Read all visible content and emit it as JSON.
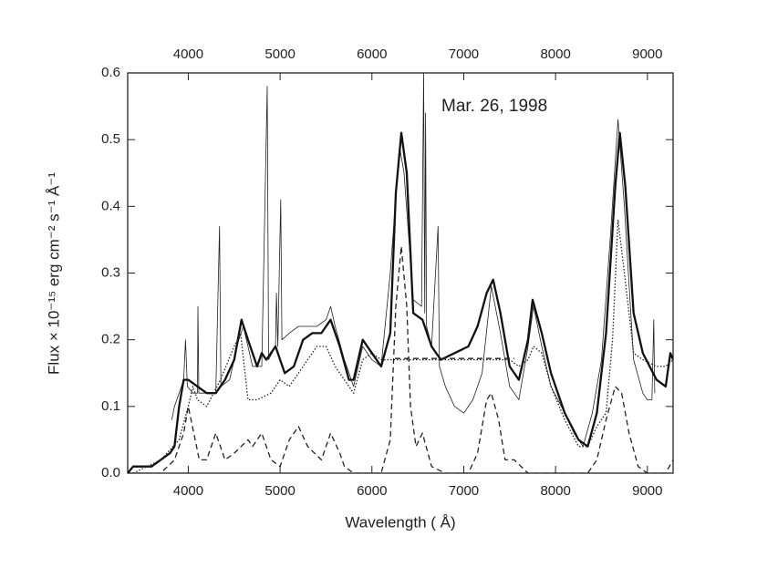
{
  "chart_data": {
    "type": "line",
    "annotation": "Mar. 26, 1998",
    "x_label": "Wavelength ( Å)",
    "y_label": "Flux × 10⁻¹⁵ erg cm⁻² s⁻¹ Å⁻¹",
    "xlim": [
      3340,
      9280
    ],
    "ylim": [
      0,
      0.6
    ],
    "xticks": [
      4000,
      5000,
      6000,
      7000,
      8000,
      9000
    ],
    "yticks": [
      {
        "value": 0,
        "label": "0.0"
      },
      0.1,
      0.2,
      0.3,
      0.4,
      0.5,
      0.6
    ],
    "series": [
      {
        "color": "#222222",
        "style": "thin",
        "x": [
          3820,
          3850,
          3900,
          3950,
          3970,
          3990,
          4050,
          4100,
          4105,
          4115,
          4200,
          4300,
          4340,
          4355,
          4450,
          4550,
          4600,
          4650,
          4700,
          4800,
          4860,
          4875,
          4950,
          4960,
          4975,
          5007,
          5020,
          5100,
          5200,
          5300,
          5400,
          5500,
          5550,
          5600,
          5700,
          5800,
          5900,
          6000,
          6100,
          6200,
          6300,
          6350,
          6450,
          6540,
          6563,
          6575,
          6584,
          6595,
          6650,
          6720,
          6735,
          6800,
          6900,
          7000,
          7100,
          7200,
          7300,
          7400,
          7500,
          7600,
          7700,
          7760,
          7850,
          7950,
          8100,
          8200,
          8300,
          8400,
          8500,
          8600,
          8680,
          8750,
          8850,
          8950,
          9000,
          9050,
          9069,
          9080
        ],
        "values": [
          0.08,
          0.1,
          0.12,
          0.14,
          0.2,
          0.13,
          0.12,
          0.12,
          0.25,
          0.12,
          0.12,
          0.12,
          0.37,
          0.13,
          0.14,
          0.2,
          0.22,
          0.19,
          0.16,
          0.16,
          0.58,
          0.17,
          0.19,
          0.27,
          0.19,
          0.41,
          0.2,
          0.21,
          0.22,
          0.22,
          0.22,
          0.23,
          0.25,
          0.22,
          0.17,
          0.13,
          0.19,
          0.17,
          0.16,
          0.3,
          0.49,
          0.45,
          0.26,
          0.25,
          0.6,
          0.24,
          0.54,
          0.22,
          0.19,
          0.37,
          0.16,
          0.13,
          0.1,
          0.09,
          0.11,
          0.15,
          0.28,
          0.21,
          0.13,
          0.11,
          0.19,
          0.25,
          0.19,
          0.13,
          0.09,
          0.06,
          0.04,
          0.09,
          0.17,
          0.36,
          0.53,
          0.4,
          0.17,
          0.12,
          0.11,
          0.11,
          0.23,
          0.12
        ]
      },
      {
        "color": "#111111",
        "style": "thick",
        "x": [
          3340,
          3400,
          3500,
          3600,
          3700,
          3800,
          3850,
          3900,
          3950,
          4000,
          4100,
          4200,
          4300,
          4400,
          4500,
          4580,
          4650,
          4750,
          4800,
          4850,
          4950,
          5050,
          5150,
          5250,
          5350,
          5450,
          5550,
          5650,
          5750,
          5800,
          5900,
          6000,
          6100,
          6200,
          6260,
          6320,
          6380,
          6450,
          6550,
          6650,
          6750,
          6900,
          7050,
          7150,
          7250,
          7320,
          7400,
          7500,
          7600,
          7700,
          7750,
          7850,
          7950,
          8100,
          8250,
          8350,
          8450,
          8550,
          8650,
          8700,
          8760,
          8850,
          8950,
          9100,
          9200,
          9250,
          9280
        ],
        "values": [
          0,
          0.01,
          0.01,
          0.01,
          0.02,
          0.03,
          0.04,
          0.1,
          0.14,
          0.14,
          0.13,
          0.12,
          0.12,
          0.14,
          0.17,
          0.23,
          0.2,
          0.16,
          0.18,
          0.17,
          0.19,
          0.15,
          0.16,
          0.2,
          0.21,
          0.21,
          0.23,
          0.19,
          0.14,
          0.14,
          0.2,
          0.18,
          0.16,
          0.21,
          0.42,
          0.51,
          0.45,
          0.24,
          0.23,
          0.19,
          0.17,
          0.18,
          0.19,
          0.22,
          0.27,
          0.29,
          0.24,
          0.16,
          0.14,
          0.2,
          0.26,
          0.21,
          0.15,
          0.09,
          0.05,
          0.04,
          0.09,
          0.21,
          0.43,
          0.51,
          0.43,
          0.24,
          0.18,
          0.14,
          0.13,
          0.18,
          0.17
        ]
      },
      {
        "color": "#222222",
        "style": "dotted",
        "x": [
          3400,
          3700,
          3900,
          4000,
          4050,
          4100,
          4200,
          4350,
          4500,
          4570,
          4650,
          4750,
          4900,
          5000,
          5100,
          5200,
          5300,
          5400,
          5500,
          5600,
          5700,
          5800,
          5900,
          6000,
          6100,
          6200,
          6300,
          6500,
          6700,
          6900,
          7100,
          7300,
          7500,
          7600,
          7700,
          7760,
          7850,
          7950,
          8100,
          8250,
          8350,
          8450,
          8550,
          8620,
          8680,
          8750,
          8850,
          8950,
          9100,
          9200,
          9280
        ],
        "values": [
          0,
          0.02,
          0.05,
          0.1,
          0.13,
          0.11,
          0.1,
          0.14,
          0.19,
          0.21,
          0.11,
          0.11,
          0.12,
          0.14,
          0.13,
          0.15,
          0.17,
          0.19,
          0.19,
          0.16,
          0.14,
          0.12,
          0.17,
          0.18,
          0.17,
          0.17,
          0.17,
          0.17,
          0.17,
          0.17,
          0.17,
          0.17,
          0.17,
          0.16,
          0.17,
          0.19,
          0.18,
          0.13,
          0.08,
          0.04,
          0.04,
          0.07,
          0.09,
          0.2,
          0.38,
          0.3,
          0.18,
          0.17,
          0.16,
          0.16,
          0.17
        ]
      },
      {
        "color": "#222222",
        "style": "dashed",
        "x": [
          6250,
          7550
        ],
        "values": [
          0.172,
          0.172
        ]
      },
      {
        "color": "#222222",
        "style": "dashed",
        "x": [
          3340,
          3500,
          3700,
          3850,
          3950,
          4000,
          4060,
          4120,
          4200,
          4300,
          4400,
          4500,
          4650,
          4700,
          4800,
          4900,
          5000,
          5100,
          5200,
          5300,
          5450,
          5550,
          5650,
          5700,
          5800,
          6100,
          6200,
          6260,
          6320,
          6380,
          6420,
          6480,
          6550,
          6650,
          6800,
          7050,
          7150,
          7250,
          7300,
          7380,
          7450,
          7550,
          7700,
          8350,
          8450,
          8550,
          8650,
          8720,
          8800,
          8900,
          9000,
          9200,
          9280
        ],
        "values": [
          0,
          0,
          0,
          0.02,
          0.06,
          0.1,
          0.06,
          0.02,
          0.02,
          0.06,
          0.02,
          0.03,
          0.05,
          0.04,
          0.06,
          0.02,
          0.01,
          0.05,
          0.07,
          0.04,
          0.02,
          0.06,
          0.03,
          0.01,
          0,
          0,
          0.05,
          0.25,
          0.34,
          0.25,
          0.1,
          0.04,
          0.06,
          0.01,
          0,
          0,
          0.03,
          0.11,
          0.12,
          0.08,
          0.02,
          0.02,
          0,
          0,
          0.02,
          0.08,
          0.13,
          0.12,
          0.06,
          0.01,
          0,
          0,
          0.02
        ]
      }
    ]
  }
}
